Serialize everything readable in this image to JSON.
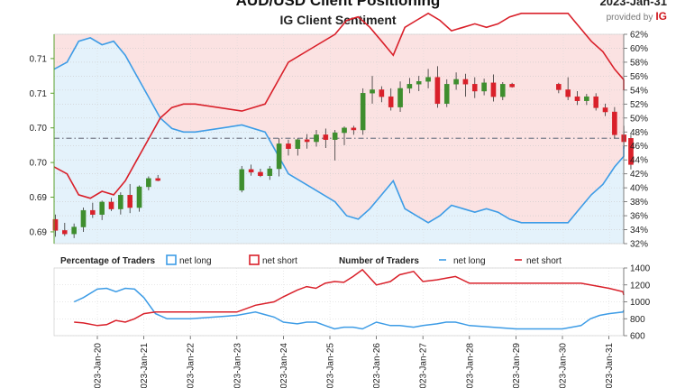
{
  "title": "AUD/USD Client Positioning",
  "subtitle": "IG Client Sentiment",
  "provider": {
    "date": "2023-Jan-31",
    "text": "provided by",
    "brand": "IG"
  },
  "colors": {
    "net_long": "#3d9ce6",
    "net_short": "#d9202a",
    "long_fill": "#e4f2fb",
    "short_fill": "#fbe2e2",
    "candle_up": "#3e8e2e",
    "candle_down": "#d9202a",
    "axis_green": "#5aa02c",
    "current_price": "#7a7f8c"
  },
  "chart_data": [
    {
      "type": "line",
      "name": "price-and-positioning",
      "price_axis": {
        "ylim": [
          0.6838,
          0.714
        ],
        "ticks": [
          0.69,
          0.69,
          0.7,
          0.7,
          0.71,
          0.71
        ],
        "tick_values": [
          0.6855,
          0.6905,
          0.6955,
          0.7005,
          0.7055,
          0.7105
        ]
      },
      "percent_axis": {
        "ylim": [
          32,
          62
        ],
        "ticks": [
          "62%",
          "60%",
          "58%",
          "56%",
          "54%",
          "52%",
          "50%",
          "48%",
          "46%",
          "44%",
          "42%",
          "40%",
          "38%",
          "36%",
          "34%",
          "32%"
        ]
      },
      "current_price": 0.699,
      "candles": [
        {
          "t": 0.05,
          "o": 0.6873,
          "h": 0.688,
          "l": 0.6848,
          "c": 0.6857
        },
        {
          "t": 0.25,
          "o": 0.6857,
          "h": 0.6868,
          "l": 0.6849,
          "c": 0.6852
        },
        {
          "t": 0.45,
          "o": 0.6852,
          "h": 0.6867,
          "l": 0.6846,
          "c": 0.6862
        },
        {
          "t": 0.65,
          "o": 0.6862,
          "h": 0.689,
          "l": 0.6855,
          "c": 0.6886
        },
        {
          "t": 0.85,
          "o": 0.6886,
          "h": 0.6897,
          "l": 0.6875,
          "c": 0.688
        },
        {
          "t": 1.05,
          "o": 0.688,
          "h": 0.69,
          "l": 0.6872,
          "c": 0.6898
        },
        {
          "t": 1.25,
          "o": 0.6898,
          "h": 0.6904,
          "l": 0.6885,
          "c": 0.6888
        },
        {
          "t": 1.45,
          "o": 0.6888,
          "h": 0.6912,
          "l": 0.688,
          "c": 0.6908
        },
        {
          "t": 1.65,
          "o": 0.6908,
          "h": 0.6924,
          "l": 0.6882,
          "c": 0.689
        },
        {
          "t": 1.85,
          "o": 0.689,
          "h": 0.6922,
          "l": 0.6884,
          "c": 0.692
        },
        {
          "t": 2.05,
          "o": 0.692,
          "h": 0.6935,
          "l": 0.6915,
          "c": 0.6932
        },
        {
          "t": 2.25,
          "o": 0.6932,
          "h": 0.6937,
          "l": 0.6928,
          "c": 0.6929
        },
        {
          "t": 4.05,
          "o": 0.6915,
          "h": 0.695,
          "l": 0.6912,
          "c": 0.6945
        },
        {
          "t": 4.25,
          "o": 0.6945,
          "h": 0.6952,
          "l": 0.6936,
          "c": 0.6941
        },
        {
          "t": 4.45,
          "o": 0.6941,
          "h": 0.6946,
          "l": 0.6934,
          "c": 0.6936
        },
        {
          "t": 4.65,
          "o": 0.6936,
          "h": 0.695,
          "l": 0.693,
          "c": 0.6946
        },
        {
          "t": 4.85,
          "o": 0.6946,
          "h": 0.699,
          "l": 0.6935,
          "c": 0.6982
        },
        {
          "t": 5.05,
          "o": 0.6982,
          "h": 0.6988,
          "l": 0.6965,
          "c": 0.6975
        },
        {
          "t": 5.25,
          "o": 0.6975,
          "h": 0.699,
          "l": 0.6965,
          "c": 0.6988
        },
        {
          "t": 5.45,
          "o": 0.6988,
          "h": 0.6996,
          "l": 0.6975,
          "c": 0.6985
        },
        {
          "t": 5.65,
          "o": 0.6985,
          "h": 0.7002,
          "l": 0.6978,
          "c": 0.6995
        },
        {
          "t": 5.85,
          "o": 0.6995,
          "h": 0.7004,
          "l": 0.6976,
          "c": 0.6988
        },
        {
          "t": 6.05,
          "o": 0.6988,
          "h": 0.7002,
          "l": 0.6958,
          "c": 0.6998
        },
        {
          "t": 6.25,
          "o": 0.6998,
          "h": 0.7007,
          "l": 0.698,
          "c": 0.7005
        },
        {
          "t": 6.45,
          "o": 0.7005,
          "h": 0.7008,
          "l": 0.6995,
          "c": 0.7002
        },
        {
          "t": 6.65,
          "o": 0.7002,
          "h": 0.7062,
          "l": 0.6995,
          "c": 0.7055
        },
        {
          "t": 6.85,
          "o": 0.7055,
          "h": 0.708,
          "l": 0.704,
          "c": 0.706
        },
        {
          "t": 7.05,
          "o": 0.706,
          "h": 0.7065,
          "l": 0.7042,
          "c": 0.705
        },
        {
          "t": 7.25,
          "o": 0.705,
          "h": 0.7062,
          "l": 0.703,
          "c": 0.7035
        },
        {
          "t": 7.45,
          "o": 0.7035,
          "h": 0.7072,
          "l": 0.7028,
          "c": 0.7062
        },
        {
          "t": 7.65,
          "o": 0.7062,
          "h": 0.7077,
          "l": 0.7055,
          "c": 0.7068
        },
        {
          "t": 7.85,
          "o": 0.7068,
          "h": 0.708,
          "l": 0.7058,
          "c": 0.7072
        },
        {
          "t": 8.05,
          "o": 0.7072,
          "h": 0.709,
          "l": 0.7062,
          "c": 0.7078
        },
        {
          "t": 8.25,
          "o": 0.7078,
          "h": 0.7094,
          "l": 0.7034,
          "c": 0.704
        },
        {
          "t": 8.45,
          "o": 0.704,
          "h": 0.7075,
          "l": 0.7035,
          "c": 0.7068
        },
        {
          "t": 8.65,
          "o": 0.7068,
          "h": 0.7085,
          "l": 0.706,
          "c": 0.7075
        },
        {
          "t": 8.85,
          "o": 0.7075,
          "h": 0.7083,
          "l": 0.705,
          "c": 0.7068
        },
        {
          "t": 9.05,
          "o": 0.7068,
          "h": 0.7078,
          "l": 0.7048,
          "c": 0.7058
        },
        {
          "t": 9.25,
          "o": 0.7058,
          "h": 0.7076,
          "l": 0.7052,
          "c": 0.707
        },
        {
          "t": 9.45,
          "o": 0.707,
          "h": 0.7082,
          "l": 0.7043,
          "c": 0.705
        },
        {
          "t": 9.65,
          "o": 0.705,
          "h": 0.7071,
          "l": 0.7045,
          "c": 0.7068
        },
        {
          "t": 9.85,
          "o": 0.7068,
          "h": 0.707,
          "l": 0.7063,
          "c": 0.7064
        },
        {
          "t": 10.85,
          "o": 0.7068,
          "h": 0.707,
          "l": 0.7055,
          "c": 0.706
        },
        {
          "t": 11.05,
          "o": 0.706,
          "h": 0.7078,
          "l": 0.7045,
          "c": 0.705
        },
        {
          "t": 11.25,
          "o": 0.705,
          "h": 0.7058,
          "l": 0.7038,
          "c": 0.7044
        },
        {
          "t": 11.45,
          "o": 0.7044,
          "h": 0.7054,
          "l": 0.7038,
          "c": 0.705
        },
        {
          "t": 11.65,
          "o": 0.705,
          "h": 0.7055,
          "l": 0.703,
          "c": 0.7034
        },
        {
          "t": 11.85,
          "o": 0.7034,
          "h": 0.704,
          "l": 0.7022,
          "c": 0.7028
        },
        {
          "t": 12.05,
          "o": 0.7028,
          "h": 0.7035,
          "l": 0.699,
          "c": 0.6995
        },
        {
          "t": 12.25,
          "o": 0.6995,
          "h": 0.7008,
          "l": 0.6975,
          "c": 0.6985
        },
        {
          "t": 12.4,
          "o": 0.699,
          "h": 0.6995,
          "l": 0.6945,
          "c": 0.6952
        }
      ],
      "series": [
        {
          "name": "net long",
          "unit": "%",
          "x": [
            0,
            0.25,
            0.5,
            0.75,
            1.0,
            1.25,
            1.5,
            1.75,
            2.0,
            2.25,
            2.5,
            2.75,
            3.0,
            4.0,
            4.5,
            5.0,
            5.5,
            6.0,
            6.25,
            6.5,
            6.75,
            7.0,
            7.25,
            7.5,
            7.75,
            8.0,
            8.25,
            8.5,
            8.75,
            9.0,
            9.25,
            9.5,
            9.75,
            10.0,
            10.5,
            11.0,
            11.25,
            11.5,
            11.75,
            12.0,
            12.25,
            12.5
          ],
          "values": [
            57,
            58,
            61,
            61.5,
            60.5,
            61,
            59,
            56,
            53,
            50,
            48.5,
            48,
            48,
            49,
            48,
            42,
            40,
            38,
            36,
            35.5,
            37,
            39,
            41,
            37,
            36,
            35,
            36,
            37.5,
            37,
            36.5,
            37,
            36.5,
            35.5,
            35,
            35,
            35,
            37,
            39,
            40.5,
            43,
            44.5,
            46
          ]
        },
        {
          "name": "net short",
          "unit": "%",
          "x": [
            0,
            0.25,
            0.5,
            0.75,
            1.0,
            1.25,
            1.5,
            1.75,
            2.0,
            2.25,
            2.5,
            2.75,
            3.0,
            4.0,
            4.5,
            5.0,
            5.5,
            6.0,
            6.25,
            6.5,
            6.75,
            7.0,
            7.25,
            7.5,
            7.75,
            8.0,
            8.25,
            8.5,
            8.75,
            9.0,
            9.25,
            9.5,
            9.75,
            10.0,
            10.5,
            11.0,
            11.25,
            11.5,
            11.75,
            12.0,
            12.25,
            12.5
          ],
          "values": [
            43,
            42,
            39,
            38.5,
            39.5,
            39,
            41,
            44,
            47,
            50,
            51.5,
            52,
            52,
            51,
            52,
            58,
            60,
            62,
            64,
            64.5,
            63,
            61,
            59,
            63,
            64,
            65,
            64,
            62.5,
            63,
            63.5,
            63,
            63.5,
            64.5,
            65,
            65,
            65,
            63,
            61,
            59.5,
            57,
            55.5,
            54
          ]
        }
      ]
    },
    {
      "type": "line",
      "name": "number-of-traders",
      "title": "Number of Traders",
      "left_legend_title": "Percentage of Traders",
      "legend": [
        "net long",
        "net short"
      ],
      "ylim": [
        600,
        1400
      ],
      "yticks": [
        600,
        800,
        1000,
        1200,
        1400
      ],
      "x_categories": [
        "2023-Jan-20",
        "2023-Jan-21",
        "2023-Jan-22",
        "2023-Jan-23",
        "2023-Jan-24",
        "2023-Jan-25",
        "2023-Jan-26",
        "2023-Jan-27",
        "2023-Jan-28",
        "2023-Jan-29",
        "2023-Jan-30",
        "2023-Jan-31"
      ],
      "series": [
        {
          "name": "net long",
          "x": [
            -0.5,
            -0.3,
            0,
            0.2,
            0.4,
            0.6,
            0.8,
            1.0,
            1.25,
            1.5,
            2.0,
            3.0,
            3.4,
            3.6,
            3.8,
            4.0,
            4.3,
            4.5,
            4.7,
            4.9,
            5.1,
            5.3,
            5.5,
            5.7,
            6.0,
            6.3,
            6.5,
            6.8,
            7.0,
            7.3,
            7.5,
            7.7,
            8.0,
            9.0,
            10.0,
            10.2,
            10.4,
            10.6,
            10.8,
            11.0,
            11.3,
            11.6
          ],
          "values": [
            1000,
            1050,
            1150,
            1160,
            1120,
            1160,
            1150,
            1050,
            860,
            800,
            800,
            840,
            880,
            850,
            820,
            760,
            740,
            760,
            760,
            720,
            680,
            700,
            700,
            680,
            760,
            720,
            720,
            700,
            720,
            740,
            760,
            760,
            720,
            680,
            680,
            700,
            720,
            800,
            840,
            860,
            880,
            900
          ]
        },
        {
          "name": "net short",
          "x": [
            -0.5,
            -0.3,
            0,
            0.2,
            0.4,
            0.6,
            0.8,
            1.0,
            1.25,
            1.5,
            2.0,
            3.0,
            3.4,
            3.6,
            3.8,
            4.0,
            4.3,
            4.5,
            4.7,
            4.9,
            5.1,
            5.3,
            5.5,
            5.7,
            6.0,
            6.3,
            6.5,
            6.8,
            7.0,
            7.3,
            7.5,
            7.7,
            8.0,
            9.0,
            10.0,
            10.2,
            10.4,
            10.6,
            10.8,
            11.0,
            11.3,
            11.6
          ],
          "values": [
            760,
            750,
            720,
            730,
            780,
            760,
            800,
            860,
            880,
            880,
            880,
            880,
            960,
            980,
            1000,
            1060,
            1140,
            1180,
            1160,
            1220,
            1240,
            1230,
            1300,
            1380,
            1200,
            1240,
            1320,
            1360,
            1240,
            1260,
            1280,
            1300,
            1220,
            1220,
            1220,
            1220,
            1220,
            1200,
            1180,
            1160,
            1120,
            1080
          ]
        }
      ]
    }
  ]
}
